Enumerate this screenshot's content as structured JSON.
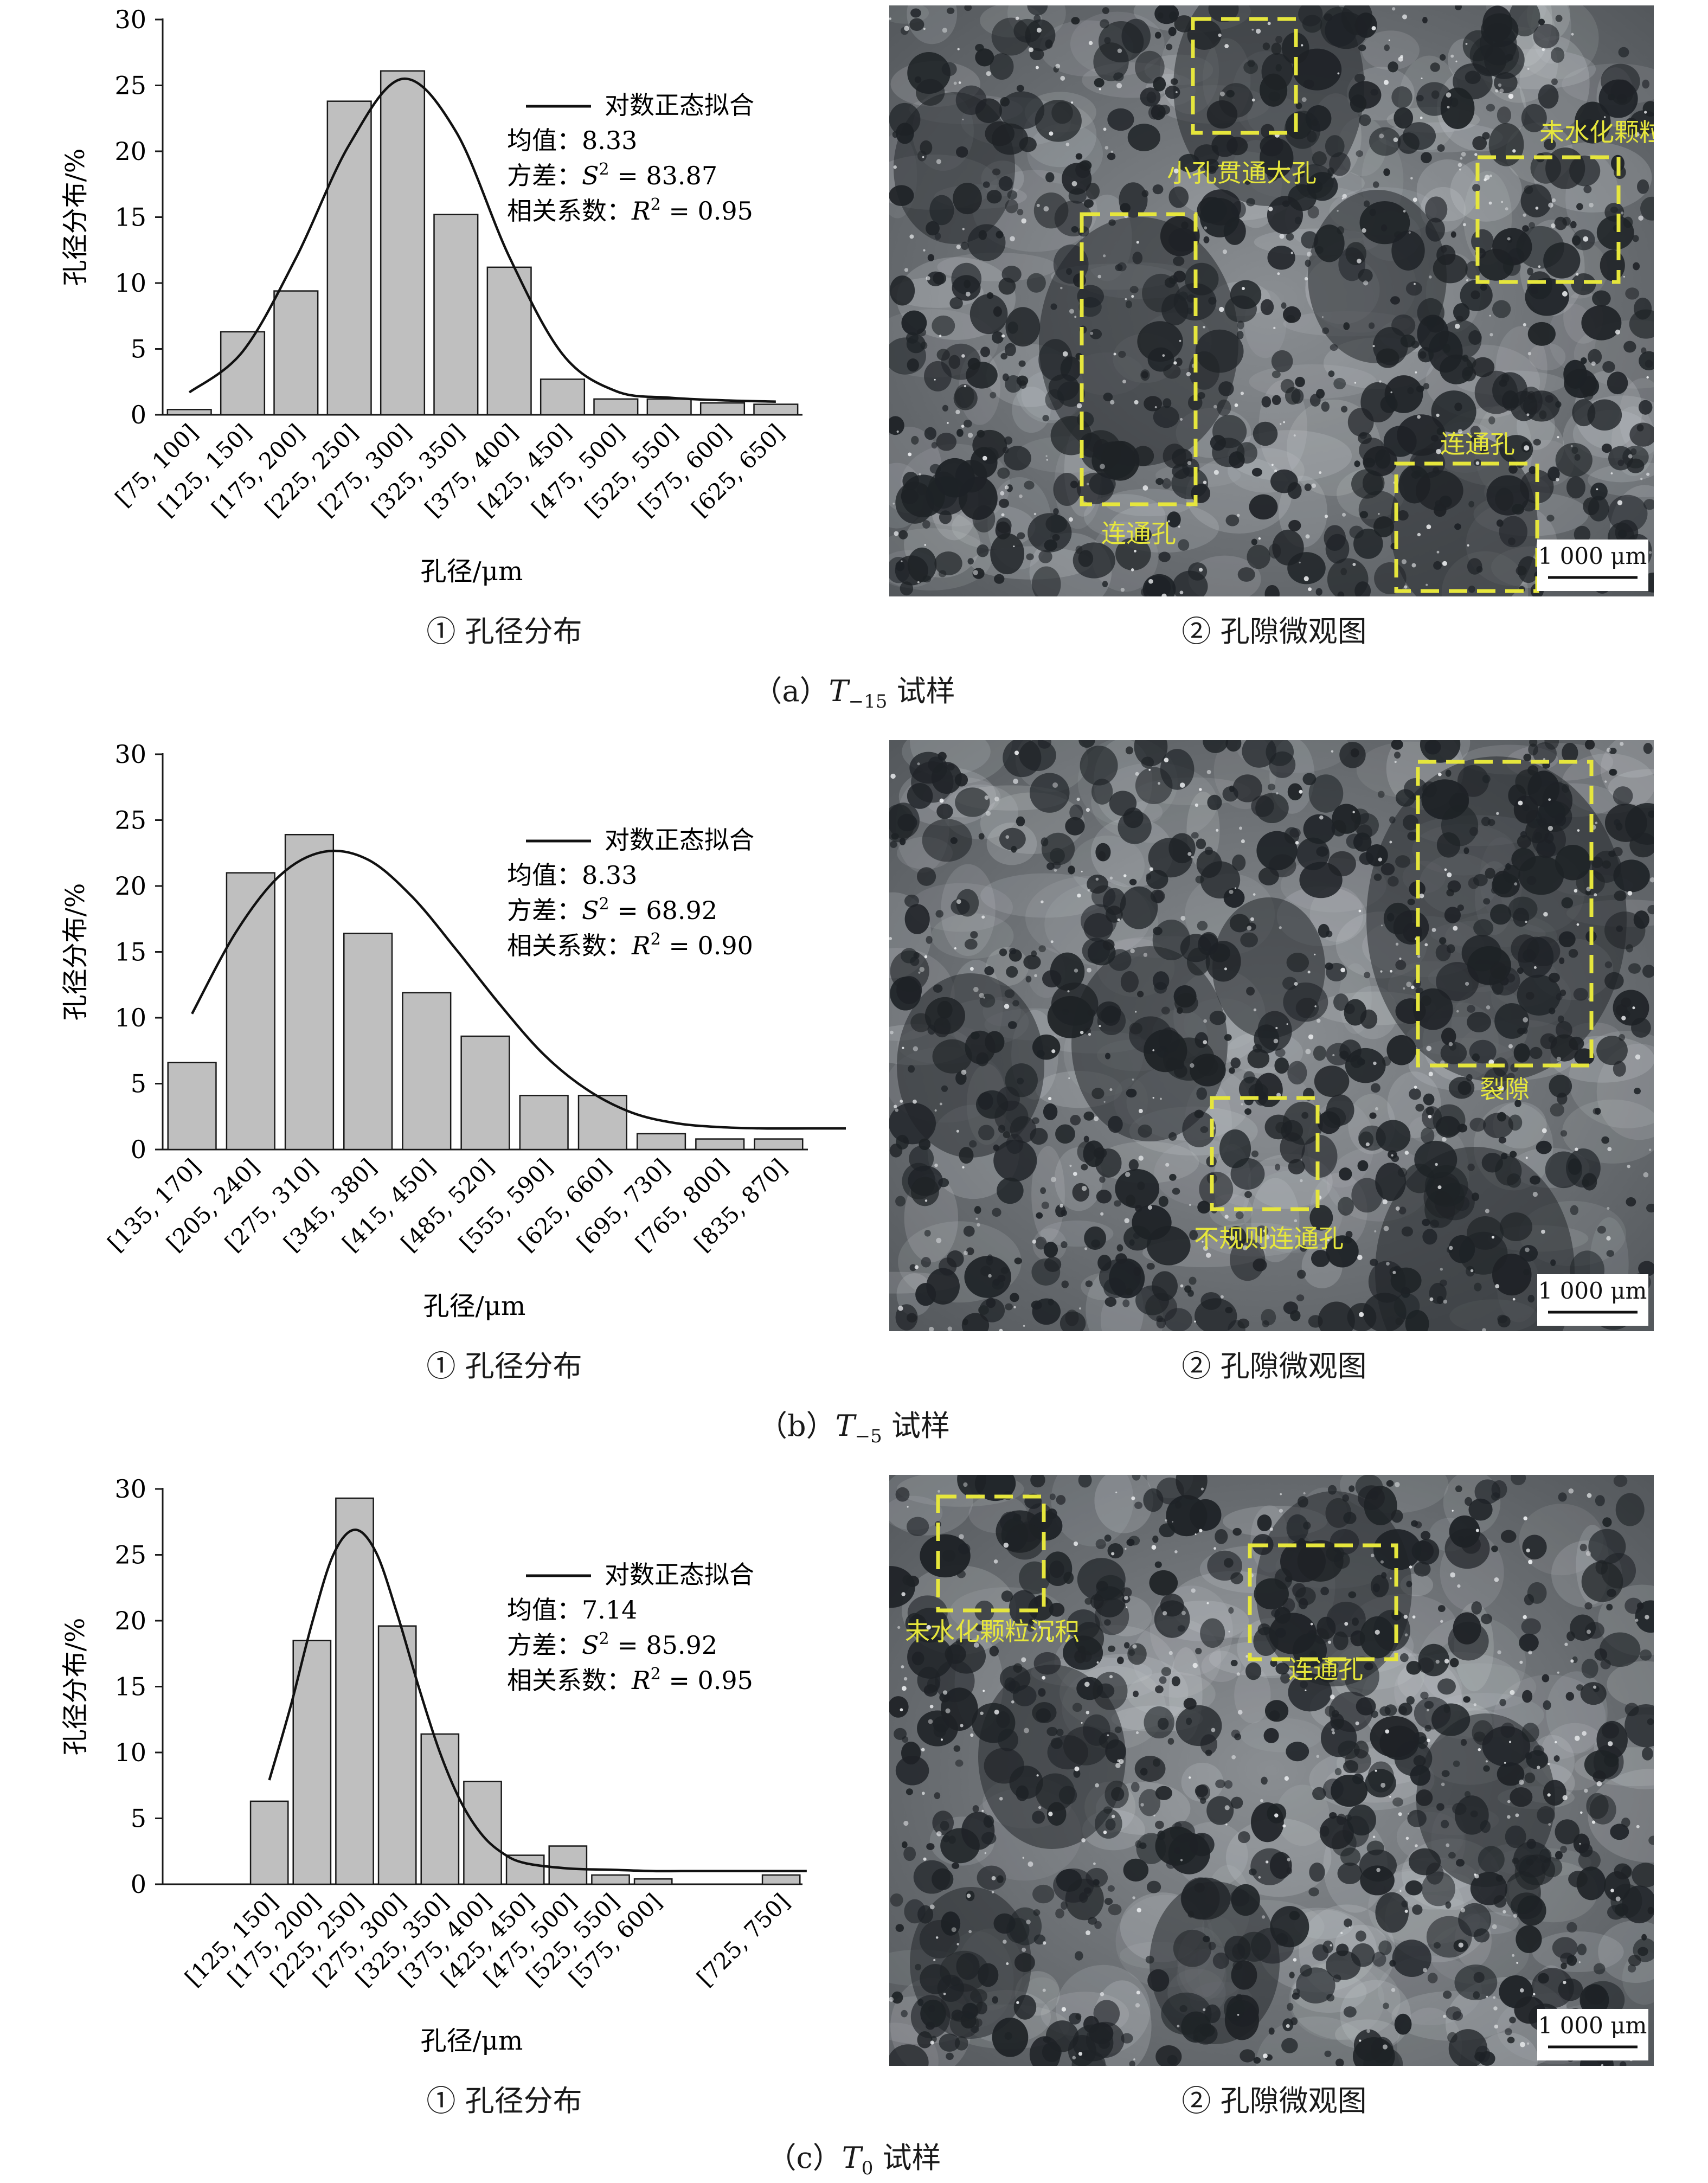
{
  "panels": [
    {
      "id": "a",
      "caption_prefix": "（a）",
      "caption_T": "T",
      "caption_sub": "−15",
      "caption_suffix": " 试样",
      "distribution_caption": "① 孔径分布",
      "micro_caption": "② 孔隙微观图",
      "scale_bar": "1 000 μm",
      "annotations": [
        "小孔贯通大孔",
        "未水化颗粒沉积",
        "连通孔",
        "连通孔"
      ],
      "legend": {
        "line_label": "对数正态拟合",
        "mean": "均值：8.33",
        "variance_prefix": "方差：",
        "variance_sym": "S",
        "variance_value": " = 83.87",
        "corr_prefix": "相关系数：",
        "corr_sym": "R",
        "corr_value": " = 0.95"
      }
    },
    {
      "id": "b",
      "caption_prefix": "（b）",
      "caption_T": "T",
      "caption_sub": "−5",
      "caption_suffix": " 试样",
      "distribution_caption": "① 孔径分布",
      "micro_caption": "② 孔隙微观图",
      "scale_bar": "1 000 μm",
      "annotations": [
        "裂隙",
        "不规则连通孔"
      ],
      "legend": {
        "line_label": "对数正态拟合",
        "mean": "均值：8.33",
        "variance_prefix": "方差：",
        "variance_sym": "S",
        "variance_value": " = 68.92",
        "corr_prefix": "相关系数：",
        "corr_sym": "R",
        "corr_value": " = 0.90"
      }
    },
    {
      "id": "c",
      "caption_prefix": "（c）",
      "caption_T": "T",
      "caption_sub": "0",
      "caption_suffix": " 试样",
      "distribution_caption": "① 孔径分布",
      "micro_caption": "② 孔隙微观图",
      "scale_bar": "1 000 μm",
      "annotations": [
        "未水化颗粒沉积",
        "连通孔"
      ],
      "legend": {
        "line_label": "对数正态拟合",
        "mean": "均值：7.14",
        "variance_prefix": "方差：",
        "variance_sym": "S",
        "variance_value": " = 85.92",
        "corr_prefix": "相关系数：",
        "corr_sym": "R",
        "corr_value": " = 0.95"
      }
    }
  ],
  "colors": {
    "bar_fill": "#bfbfbf",
    "bar_stroke": "#1a1a1a",
    "fit_line": "#111111",
    "annotation": "#e6e63c"
  },
  "chart_data": [
    {
      "type": "bar",
      "title": "",
      "xlabel": "孔径/μm",
      "ylabel": "孔径分布/%",
      "ylim": [
        0,
        30
      ],
      "yticks": [
        0,
        5,
        10,
        15,
        20,
        25,
        30
      ],
      "grid": false,
      "legend_position": "top-right",
      "categories": [
        "[75, 100]",
        "[125, 150]",
        "[175, 200]",
        "[225, 250]",
        "[275, 300]",
        "[325, 350]",
        "[375, 400]",
        "[425, 450]",
        "[475, 500]",
        "[525, 550]",
        "[575, 600]",
        "[625, 650]"
      ],
      "series": [
        {
          "type": "bar",
          "values": [
            0.4,
            6.3,
            9.4,
            23.8,
            26.1,
            15.2,
            11.2,
            2.7,
            1.2,
            1.2,
            0.9,
            0.8
          ]
        },
        {
          "name": "对数正态拟合",
          "type": "line",
          "x": [
            0,
            1,
            2,
            3,
            4,
            5,
            6,
            7,
            8,
            9,
            10,
            11
          ],
          "values": [
            1.7,
            4.8,
            11.9,
            20.5,
            25.5,
            21.5,
            12.0,
            4.6,
            1.8,
            1.3,
            1.1,
            1.0
          ]
        }
      ]
    },
    {
      "type": "bar",
      "title": "",
      "xlabel": "孔径/μm",
      "ylabel": "孔径分布/%",
      "ylim": [
        0,
        30
      ],
      "yticks": [
        0,
        5,
        10,
        15,
        20,
        25,
        30
      ],
      "grid": false,
      "legend_position": "top-right",
      "categories": [
        "[135, 170]",
        "[205, 240]",
        "[275, 310]",
        "[345, 380]",
        "[415, 450]",
        "[485, 520]",
        "[555, 590]",
        "[625, 660]",
        "[695, 730]",
        "[765, 800]",
        "[835, 870]"
      ],
      "series": [
        {
          "type": "bar",
          "values": [
            6.6,
            21.0,
            23.9,
            16.4,
            11.9,
            8.6,
            4.1,
            4.1,
            1.2,
            0.8,
            0.8
          ]
        },
        {
          "name": "对数正态拟合",
          "type": "line",
          "x": [
            0,
            0.75,
            1.5,
            2.25,
            3,
            3.75,
            4.5,
            5.25,
            6,
            6.75,
            7.5,
            8.25,
            9,
            9.75,
            10.5,
            11.2
          ],
          "values": [
            10.3,
            16.5,
            20.8,
            22.6,
            22.0,
            19.2,
            15.2,
            11.0,
            7.2,
            4.5,
            2.8,
            2.0,
            1.7,
            1.6,
            1.6,
            1.6
          ]
        }
      ]
    },
    {
      "type": "bar",
      "title": "",
      "xlabel": "孔径/μm",
      "ylabel": "孔径分布/%",
      "ylim": [
        0,
        30
      ],
      "yticks": [
        0,
        5,
        10,
        15,
        20,
        25,
        30
      ],
      "grid": false,
      "legend_position": "top-right",
      "categories": [
        "",
        "",
        "[125, 150]",
        "[175, 200]",
        "[225, 250]",
        "[275, 300]",
        "[325, 350]",
        "[375, 400]",
        "[425, 450]",
        "[475, 500]",
        "[525, 550]",
        "[575, 600]",
        "",
        "",
        "[725, 750]"
      ],
      "series": [
        {
          "type": "bar",
          "values": [
            null,
            null,
            6.3,
            18.5,
            29.3,
            19.6,
            11.4,
            7.8,
            2.2,
            2.9,
            0.7,
            0.4,
            null,
            null,
            0.7
          ]
        },
        {
          "name": "对数正态拟合",
          "type": "line",
          "x": [
            2,
            2.5,
            3,
            3.5,
            4,
            4.5,
            5,
            5.5,
            6,
            6.5,
            7,
            7.5,
            8,
            9,
            10,
            11,
            12,
            13,
            14,
            14.6
          ],
          "values": [
            7.9,
            13.5,
            19.8,
            25.0,
            26.9,
            25.2,
            20.5,
            15.0,
            10.0,
            6.2,
            3.7,
            2.3,
            1.6,
            1.2,
            1.1,
            1.0,
            1.0,
            1.0,
            1.0,
            1.0
          ]
        }
      ]
    }
  ]
}
